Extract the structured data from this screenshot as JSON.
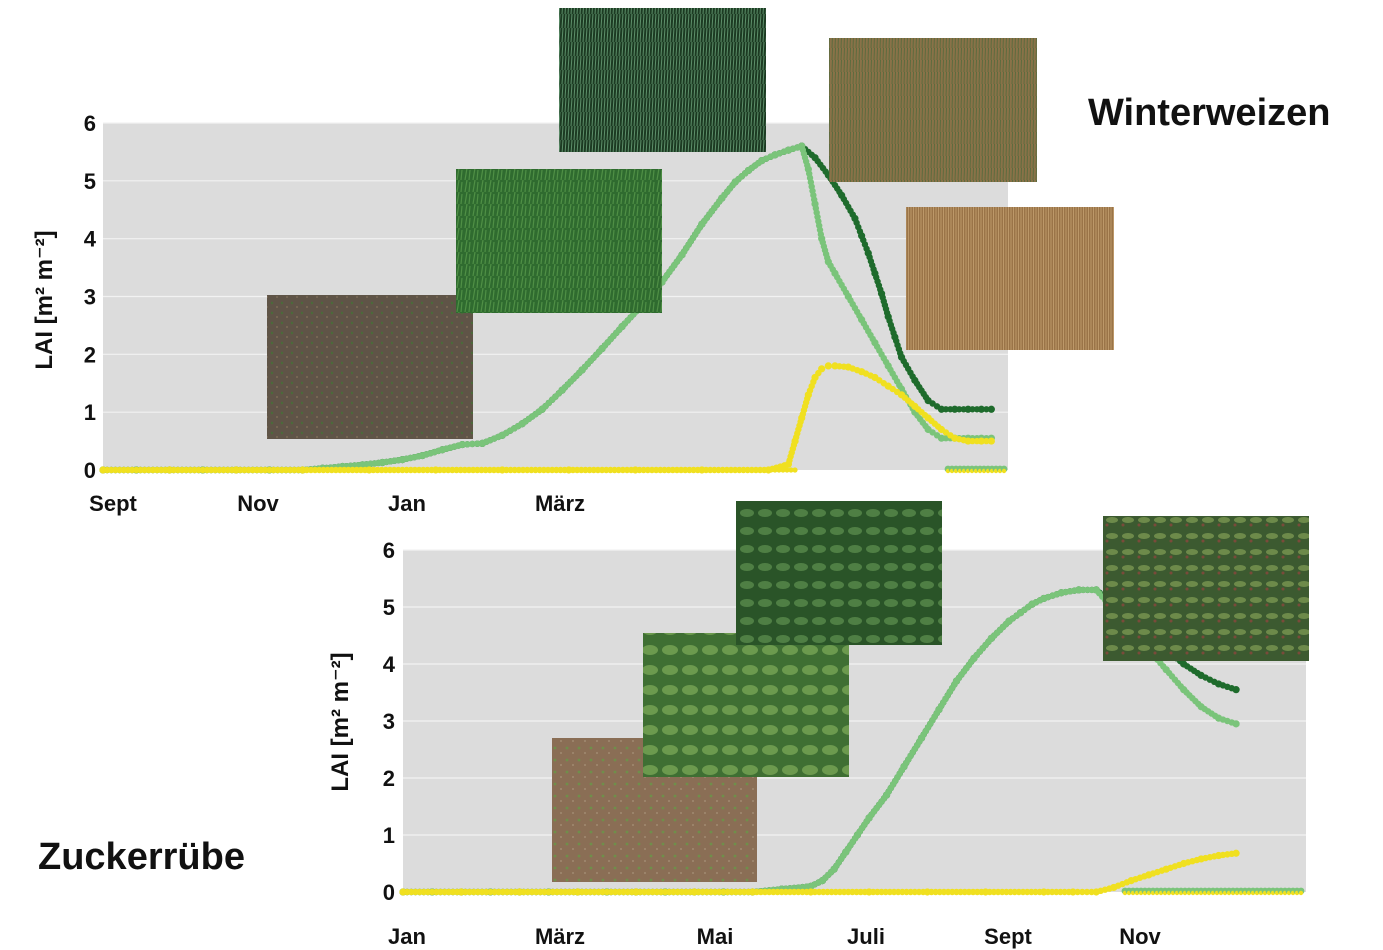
{
  "colors": {
    "plot_bg": "#dcdcdc",
    "grid": "#f2f2f2",
    "series_dark": "#1e6b2c",
    "series_light": "#7ac47a",
    "series_yellow": "#f0e020",
    "photo_soil": "#5f5447",
    "photo_grass": "#2f6b2f",
    "photo_dense": "#1c3a22",
    "photo_ripe": "#8a7248",
    "photo_harvest": "#9a7448",
    "photo_beet_young": "#8a6e55",
    "photo_beet_mid": "#3f6f33",
    "photo_beet_full": "#2a5428",
    "photo_beet_late": "#3c5a30"
  },
  "icons": [
    "photo-bare-soil",
    "photo-young-wheat",
    "photo-dense-wheat",
    "photo-ripening-wheat",
    "photo-harvest-wheat",
    "photo-beet-seedlings",
    "photo-beet-young",
    "photo-beet-full",
    "photo-beet-late"
  ],
  "titles": {
    "winterweizen": "Winterweizen",
    "zuckerruebe": "Zuckerrübe"
  },
  "chart_data": [
    {
      "type": "scatter",
      "title": "Winterweizen",
      "ylabel": "LAI [m² m⁻²]",
      "ylim": [
        0,
        6
      ],
      "yticks": [
        "0",
        "1",
        "2",
        "3",
        "4",
        "5",
        "6"
      ],
      "x_ticks": [
        "Sept",
        "Nov",
        "Jan",
        "März"
      ],
      "grid": true,
      "series": [
        {
          "color": "series_dark",
          "x": [
            0.0,
            0.5,
            1.0,
            1.5,
            2.0,
            2.5,
            3.0,
            3.3,
            3.6,
            3.9,
            4.2,
            4.5,
            4.8,
            5.1,
            5.4,
            5.7,
            6.0,
            6.3,
            6.6,
            6.9,
            7.2,
            7.5,
            7.8,
            8.1,
            8.4,
            8.7,
            9.0,
            9.3,
            9.5,
            9.7,
            9.9,
            10.1,
            10.3,
            10.5,
            10.7,
            10.9,
            11.1,
            11.3,
            11.4,
            11.5,
            11.6,
            11.7,
            11.8,
            11.9,
            12.0,
            12.2,
            12.4,
            12.6,
            12.8,
            13.0,
            13.2,
            13.35
          ],
          "y": [
            0.0,
            0.0,
            0.0,
            0.0,
            0.0,
            0.0,
            0.0,
            0.03,
            0.06,
            0.09,
            0.13,
            0.18,
            0.25,
            0.35,
            0.44,
            0.46,
            0.6,
            0.8,
            1.05,
            1.38,
            1.73,
            2.1,
            2.48,
            2.85,
            3.25,
            3.72,
            4.25,
            4.7,
            4.98,
            5.18,
            5.35,
            5.45,
            5.53,
            5.6,
            5.4,
            5.1,
            4.75,
            4.35,
            4.05,
            3.75,
            3.4,
            3.05,
            2.65,
            2.3,
            1.95,
            1.55,
            1.2,
            1.05,
            1.05,
            1.05,
            1.05,
            1.05
          ]
        },
        {
          "color": "series_light",
          "x": [
            0.0,
            0.5,
            1.0,
            1.5,
            2.0,
            2.5,
            3.0,
            3.3,
            3.6,
            3.9,
            4.2,
            4.5,
            4.8,
            5.1,
            5.4,
            5.7,
            6.0,
            6.3,
            6.6,
            6.9,
            7.2,
            7.5,
            7.8,
            8.1,
            8.4,
            8.7,
            9.0,
            9.3,
            9.5,
            9.7,
            9.9,
            10.1,
            10.3,
            10.5,
            10.6,
            10.7,
            10.8,
            10.9,
            11.0,
            11.2,
            11.4,
            11.6,
            11.8,
            12.0,
            12.2,
            12.4,
            12.6,
            12.8,
            13.0,
            13.2,
            13.35
          ],
          "y": [
            0.0,
            0.0,
            0.0,
            0.0,
            0.0,
            0.0,
            0.0,
            0.03,
            0.06,
            0.09,
            0.13,
            0.18,
            0.25,
            0.35,
            0.44,
            0.46,
            0.6,
            0.8,
            1.05,
            1.38,
            1.73,
            2.1,
            2.48,
            2.85,
            3.25,
            3.72,
            4.25,
            4.7,
            4.98,
            5.18,
            5.35,
            5.45,
            5.53,
            5.6,
            5.2,
            4.6,
            4.0,
            3.6,
            3.4,
            3.0,
            2.6,
            2.2,
            1.8,
            1.4,
            1.0,
            0.7,
            0.55,
            0.55,
            0.55,
            0.55,
            0.55
          ]
        },
        {
          "color": "series_yellow",
          "x": [
            0.0,
            1.0,
            2.0,
            3.0,
            4.0,
            5.0,
            6.0,
            7.0,
            8.0,
            9.0,
            10.0,
            10.3,
            10.4,
            10.5,
            10.6,
            10.7,
            10.8,
            10.9,
            11.0,
            11.2,
            11.4,
            11.6,
            11.8,
            12.0,
            12.2,
            12.4,
            12.6,
            12.8,
            13.0,
            13.2,
            13.35
          ],
          "y": [
            0.0,
            0.0,
            0.0,
            0.0,
            0.0,
            0.0,
            0.0,
            0.0,
            0.0,
            0.0,
            0.0,
            0.1,
            0.5,
            0.9,
            1.3,
            1.6,
            1.75,
            1.8,
            1.8,
            1.78,
            1.7,
            1.6,
            1.45,
            1.3,
            1.1,
            0.9,
            0.7,
            0.55,
            0.5,
            0.5,
            0.5
          ]
        }
      ]
    },
    {
      "type": "scatter",
      "title": "Zuckerrübe",
      "ylabel": "LAI [m² m⁻²]",
      "ylim": [
        0,
        6
      ],
      "yticks": [
        "0",
        "1",
        "2",
        "3",
        "4",
        "5",
        "6"
      ],
      "x_ticks": [
        "Jan",
        "März",
        "Mai",
        "Juli",
        "Sept",
        "Nov"
      ],
      "grid": true,
      "series": [
        {
          "color": "series_dark",
          "x": [
            0.0,
            0.5,
            1.0,
            1.5,
            2.0,
            2.5,
            3.0,
            3.5,
            4.0,
            4.5,
            5.0,
            5.5,
            6.0,
            6.5,
            7.0,
            7.2,
            7.4,
            7.6,
            7.8,
            8.0,
            8.3,
            8.6,
            8.9,
            9.2,
            9.5,
            9.8,
            10.1,
            10.4,
            10.6,
            10.8,
            11.0,
            11.3,
            11.6,
            11.9,
            12.2,
            12.5,
            12.8,
            13.1,
            13.4,
            13.7,
            14.0,
            14.3
          ],
          "y": [
            0.0,
            0.0,
            0.0,
            0.0,
            0.0,
            0.0,
            0.0,
            0.0,
            0.0,
            0.0,
            0.0,
            0.0,
            0.0,
            0.05,
            0.1,
            0.2,
            0.4,
            0.7,
            1.0,
            1.3,
            1.7,
            2.2,
            2.7,
            3.2,
            3.7,
            4.1,
            4.45,
            4.75,
            4.9,
            5.05,
            5.15,
            5.25,
            5.3,
            5.3,
            5.05,
            4.8,
            4.5,
            4.25,
            4.0,
            3.8,
            3.65,
            3.55
          ]
        },
        {
          "color": "series_light",
          "x": [
            0.0,
            0.5,
            1.0,
            1.5,
            2.0,
            2.5,
            3.0,
            3.5,
            4.0,
            4.5,
            5.0,
            5.5,
            6.0,
            6.5,
            7.0,
            7.2,
            7.4,
            7.6,
            7.8,
            8.0,
            8.3,
            8.6,
            8.9,
            9.2,
            9.5,
            9.8,
            10.1,
            10.4,
            10.6,
            10.8,
            11.0,
            11.3,
            11.6,
            11.9,
            12.2,
            12.5,
            12.8,
            13.1,
            13.4,
            13.7,
            14.0,
            14.3
          ],
          "y": [
            0.0,
            0.0,
            0.0,
            0.0,
            0.0,
            0.0,
            0.0,
            0.0,
            0.0,
            0.0,
            0.0,
            0.0,
            0.0,
            0.05,
            0.1,
            0.2,
            0.4,
            0.7,
            1.0,
            1.3,
            1.7,
            2.2,
            2.7,
            3.2,
            3.7,
            4.1,
            4.45,
            4.75,
            4.9,
            5.05,
            5.15,
            5.25,
            5.3,
            5.3,
            4.95,
            4.6,
            4.25,
            3.9,
            3.55,
            3.25,
            3.05,
            2.95
          ]
        },
        {
          "color": "series_yellow",
          "x": [
            0.0,
            1.0,
            2.0,
            3.0,
            4.0,
            5.0,
            6.0,
            7.0,
            8.0,
            9.0,
            10.0,
            11.0,
            11.5,
            11.9,
            12.2,
            12.5,
            12.8,
            13.1,
            13.4,
            13.7,
            14.0,
            14.3
          ],
          "y": [
            0.0,
            0.0,
            0.0,
            0.0,
            0.0,
            0.0,
            0.0,
            0.0,
            0.0,
            0.0,
            0.0,
            0.0,
            0.0,
            0.0,
            0.08,
            0.2,
            0.3,
            0.4,
            0.5,
            0.58,
            0.64,
            0.68
          ]
        }
      ]
    }
  ]
}
